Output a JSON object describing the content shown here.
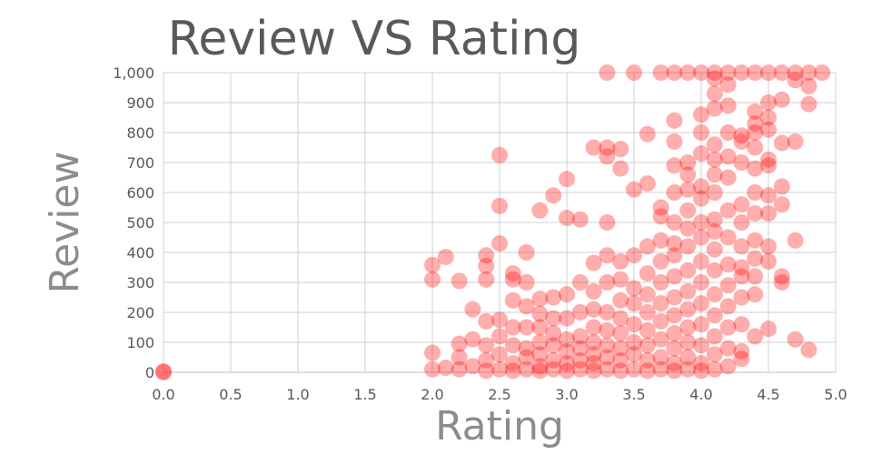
{
  "chart_data": {
    "type": "scatter",
    "title": "Review VS Rating",
    "xlabel": "Rating",
    "ylabel": "Review",
    "xlim": [
      0,
      5
    ],
    "ylim": [
      0,
      1000
    ],
    "x_ticks": [
      "0.0",
      "0.5",
      "1.0",
      "1.5",
      "2.0",
      "2.5",
      "3.0",
      "3.5",
      "4.0",
      "4.5",
      "5.0"
    ],
    "y_ticks": [
      "0",
      "100",
      "200",
      "300",
      "400",
      "500",
      "600",
      "700",
      "800",
      "900",
      "1,000"
    ],
    "grid": true,
    "legend": "none",
    "marker_color": "#ff0000",
    "series": [
      {
        "points": [
          [
            0.0,
            0
          ],
          [
            0.0,
            3
          ],
          [
            2.0,
            10
          ],
          [
            2.0,
            65
          ],
          [
            2.0,
            310
          ],
          [
            2.0,
            358
          ],
          [
            2.1,
            15
          ],
          [
            2.1,
            385
          ],
          [
            2.2,
            10
          ],
          [
            2.2,
            50
          ],
          [
            2.2,
            95
          ],
          [
            2.2,
            305
          ],
          [
            2.3,
            20
          ],
          [
            2.3,
            110
          ],
          [
            2.3,
            210
          ],
          [
            2.4,
            5
          ],
          [
            2.4,
            40
          ],
          [
            2.4,
            90
          ],
          [
            2.4,
            170
          ],
          [
            2.4,
            310
          ],
          [
            2.4,
            355
          ],
          [
            2.4,
            390
          ],
          [
            2.5,
            10
          ],
          [
            2.5,
            60
          ],
          [
            2.5,
            120
          ],
          [
            2.5,
            175
          ],
          [
            2.5,
            430
          ],
          [
            2.5,
            555
          ],
          [
            2.5,
            725
          ],
          [
            2.6,
            5
          ],
          [
            2.6,
            30
          ],
          [
            2.6,
            90
          ],
          [
            2.6,
            150
          ],
          [
            2.6,
            240
          ],
          [
            2.6,
            310
          ],
          [
            2.6,
            330
          ],
          [
            2.7,
            10
          ],
          [
            2.7,
            50
          ],
          [
            2.7,
            80
          ],
          [
            2.7,
            150
          ],
          [
            2.7,
            220
          ],
          [
            2.7,
            300
          ],
          [
            2.7,
            400
          ],
          [
            2.8,
            5
          ],
          [
            2.8,
            20
          ],
          [
            2.8,
            60
          ],
          [
            2.8,
            100
          ],
          [
            2.8,
            150
          ],
          [
            2.8,
            195
          ],
          [
            2.8,
            245
          ],
          [
            2.8,
            540
          ],
          [
            2.9,
            10
          ],
          [
            2.9,
            40
          ],
          [
            2.9,
            90
          ],
          [
            2.9,
            130
          ],
          [
            2.9,
            180
          ],
          [
            2.9,
            250
          ],
          [
            2.9,
            590
          ],
          [
            3.0,
            5
          ],
          [
            3.0,
            30
          ],
          [
            3.0,
            70
          ],
          [
            3.0,
            110
          ],
          [
            3.0,
            180
          ],
          [
            3.0,
            260
          ],
          [
            3.0,
            515
          ],
          [
            3.0,
            645
          ],
          [
            3.1,
            10
          ],
          [
            3.1,
            40
          ],
          [
            3.1,
            80
          ],
          [
            3.1,
            120
          ],
          [
            3.1,
            200
          ],
          [
            3.1,
            300
          ],
          [
            3.1,
            510
          ],
          [
            3.2,
            5
          ],
          [
            3.2,
            30
          ],
          [
            3.2,
            60
          ],
          [
            3.2,
            100
          ],
          [
            3.2,
            150
          ],
          [
            3.2,
            210
          ],
          [
            3.2,
            270
          ],
          [
            3.2,
            365
          ],
          [
            3.2,
            750
          ],
          [
            3.3,
            10
          ],
          [
            3.3,
            50
          ],
          [
            3.3,
            90
          ],
          [
            3.3,
            140
          ],
          [
            3.3,
            200
          ],
          [
            3.3,
            300
          ],
          [
            3.3,
            390
          ],
          [
            3.3,
            500
          ],
          [
            3.3,
            720
          ],
          [
            3.3,
            750
          ],
          [
            3.3,
            1000
          ],
          [
            3.4,
            5
          ],
          [
            3.4,
            40
          ],
          [
            3.4,
            80
          ],
          [
            3.4,
            130
          ],
          [
            3.4,
            180
          ],
          [
            3.4,
            240
          ],
          [
            3.4,
            310
          ],
          [
            3.4,
            370
          ],
          [
            3.4,
            680
          ],
          [
            3.4,
            745
          ],
          [
            3.5,
            10
          ],
          [
            3.5,
            60
          ],
          [
            3.5,
            100
          ],
          [
            3.5,
            160
          ],
          [
            3.5,
            230
          ],
          [
            3.5,
            280
          ],
          [
            3.5,
            390
          ],
          [
            3.5,
            610
          ],
          [
            3.5,
            1000
          ],
          [
            3.6,
            5
          ],
          [
            3.6,
            40
          ],
          [
            3.6,
            90
          ],
          [
            3.6,
            140
          ],
          [
            3.6,
            200
          ],
          [
            3.6,
            260
          ],
          [
            3.6,
            330
          ],
          [
            3.6,
            420
          ],
          [
            3.6,
            630
          ],
          [
            3.6,
            795
          ],
          [
            3.7,
            10
          ],
          [
            3.7,
            50
          ],
          [
            3.7,
            110
          ],
          [
            3.7,
            170
          ],
          [
            3.7,
            230
          ],
          [
            3.7,
            300
          ],
          [
            3.7,
            370
          ],
          [
            3.7,
            440
          ],
          [
            3.7,
            520
          ],
          [
            3.7,
            550
          ],
          [
            3.7,
            1000
          ],
          [
            3.8,
            5
          ],
          [
            3.8,
            30
          ],
          [
            3.8,
            80
          ],
          [
            3.8,
            130
          ],
          [
            3.8,
            190
          ],
          [
            3.8,
            250
          ],
          [
            3.8,
            320
          ],
          [
            3.8,
            390
          ],
          [
            3.8,
            430
          ],
          [
            3.8,
            500
          ],
          [
            3.8,
            600
          ],
          [
            3.8,
            690
          ],
          [
            3.8,
            770
          ],
          [
            3.8,
            840
          ],
          [
            3.8,
            1000
          ],
          [
            3.9,
            10
          ],
          [
            3.9,
            50
          ],
          [
            3.9,
            100
          ],
          [
            3.9,
            150
          ],
          [
            3.9,
            210
          ],
          [
            3.9,
            270
          ],
          [
            3.9,
            340
          ],
          [
            3.9,
            420
          ],
          [
            3.9,
            480
          ],
          [
            3.9,
            540
          ],
          [
            3.9,
            610
          ],
          [
            3.9,
            660
          ],
          [
            3.9,
            700
          ],
          [
            3.9,
            1000
          ],
          [
            4.0,
            5
          ],
          [
            4.0,
            30
          ],
          [
            4.0,
            90
          ],
          [
            4.0,
            160
          ],
          [
            4.0,
            230
          ],
          [
            4.0,
            300
          ],
          [
            4.0,
            370
          ],
          [
            4.0,
            450
          ],
          [
            4.0,
            500
          ],
          [
            4.0,
            580
          ],
          [
            4.0,
            620
          ],
          [
            4.0,
            730
          ],
          [
            4.0,
            800
          ],
          [
            4.0,
            860
          ],
          [
            4.0,
            1000
          ],
          [
            4.1,
            10
          ],
          [
            4.1,
            60
          ],
          [
            4.1,
            120
          ],
          [
            4.1,
            190
          ],
          [
            4.1,
            260
          ],
          [
            4.1,
            340
          ],
          [
            4.1,
            410
          ],
          [
            4.1,
            470
          ],
          [
            4.1,
            510
          ],
          [
            4.1,
            600
          ],
          [
            4.1,
            660
          ],
          [
            4.1,
            710
          ],
          [
            4.1,
            760
          ],
          [
            4.1,
            880
          ],
          [
            4.1,
            930
          ],
          [
            4.1,
            980
          ],
          [
            4.1,
            1000
          ],
          [
            4.2,
            20
          ],
          [
            4.2,
            80
          ],
          [
            4.2,
            150
          ],
          [
            4.2,
            220
          ],
          [
            4.2,
            290
          ],
          [
            4.2,
            360
          ],
          [
            4.2,
            450
          ],
          [
            4.2,
            540
          ],
          [
            4.2,
            650
          ],
          [
            4.2,
            720
          ],
          [
            4.2,
            800
          ],
          [
            4.2,
            890
          ],
          [
            4.2,
            960
          ],
          [
            4.2,
            1000
          ],
          [
            4.3,
            45
          ],
          [
            4.3,
            70
          ],
          [
            4.3,
            160
          ],
          [
            4.3,
            250
          ],
          [
            4.3,
            320
          ],
          [
            4.3,
            350
          ],
          [
            4.3,
            420
          ],
          [
            4.3,
            500
          ],
          [
            4.3,
            560
          ],
          [
            4.3,
            700
          ],
          [
            4.3,
            770
          ],
          [
            4.3,
            790
          ],
          [
            4.3,
            1000
          ],
          [
            4.4,
            120
          ],
          [
            4.4,
            260
          ],
          [
            4.4,
            320
          ],
          [
            4.4,
            380
          ],
          [
            4.4,
            440
          ],
          [
            4.4,
            530
          ],
          [
            4.4,
            600
          ],
          [
            4.4,
            680
          ],
          [
            4.4,
            750
          ],
          [
            4.4,
            800
          ],
          [
            4.4,
            830
          ],
          [
            4.4,
            870
          ],
          [
            4.4,
            1000
          ],
          [
            4.5,
            145
          ],
          [
            4.5,
            370
          ],
          [
            4.5,
            420
          ],
          [
            4.5,
            530
          ],
          [
            4.5,
            590
          ],
          [
            4.5,
            690
          ],
          [
            4.5,
            710
          ],
          [
            4.5,
            810
          ],
          [
            4.5,
            850
          ],
          [
            4.5,
            900
          ],
          [
            4.5,
            1000
          ],
          [
            4.6,
            300
          ],
          [
            4.6,
            320
          ],
          [
            4.6,
            560
          ],
          [
            4.6,
            620
          ],
          [
            4.6,
            765
          ],
          [
            4.6,
            910
          ],
          [
            4.6,
            1000
          ],
          [
            4.7,
            110
          ],
          [
            4.7,
            440
          ],
          [
            4.7,
            770
          ],
          [
            4.7,
            975
          ],
          [
            4.7,
            1000
          ],
          [
            4.8,
            75
          ],
          [
            4.8,
            895
          ],
          [
            4.8,
            955
          ],
          [
            4.8,
            1000
          ],
          [
            4.9,
            1000
          ]
        ]
      }
    ]
  }
}
